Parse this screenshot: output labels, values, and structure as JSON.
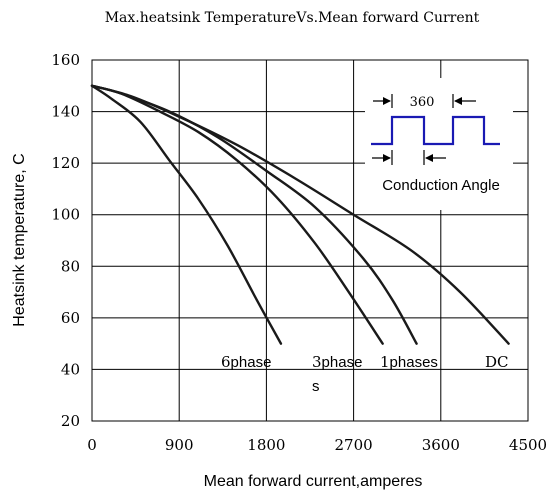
{
  "chart_data": {
    "type": "line",
    "title": "Max.heatsink TemperatureVs.Mean forward Current",
    "xlabel": "Mean forward current,amperes",
    "ylabel": "Heatsink temperature, C",
    "xlim": [
      0,
      4500
    ],
    "ylim": [
      20,
      160
    ],
    "xticks": [
      0,
      900,
      1800,
      2700,
      3600,
      4500
    ],
    "yticks": [
      20,
      40,
      60,
      80,
      100,
      120,
      140,
      160
    ],
    "grid": true,
    "series": [
      {
        "name": "6phase",
        "label_parts": [
          "6",
          "phase"
        ],
        "x": [
          0,
          200,
          500,
          800,
          1100,
          1400,
          1700,
          1950
        ],
        "y": [
          150,
          145,
          136,
          121,
          106,
          88,
          67,
          50
        ]
      },
      {
        "name": "3phases",
        "label_parts": [
          "3",
          "phase",
          "s"
        ],
        "x": [
          0,
          300,
          700,
          1100,
          1500,
          1900,
          2300,
          2650,
          3000
        ],
        "y": [
          150,
          147,
          140,
          132,
          121,
          107,
          89,
          70,
          50
        ]
      },
      {
        "name": "1phases",
        "label_parts": [
          "1",
          "phases"
        ],
        "x": [
          0,
          300,
          800,
          1300,
          1800,
          2300,
          2800,
          3100,
          3350
        ],
        "y": [
          150,
          147,
          140,
          130,
          117,
          103,
          83,
          67,
          50
        ]
      },
      {
        "name": "DC",
        "label_parts": [
          "DC"
        ],
        "x": [
          0,
          400,
          900,
          1500,
          2100,
          2700,
          3300,
          3800,
          4300
        ],
        "y": [
          150,
          146,
          138,
          127,
          114,
          100,
          86,
          70,
          50
        ]
      }
    ],
    "annotations": {
      "inset_value": "360",
      "inset_caption": "Conduction  Angle"
    },
    "colors": {
      "series": "#1a1a1a",
      "grid": "#000000",
      "inset_wave": "#1a1ab3"
    }
  }
}
